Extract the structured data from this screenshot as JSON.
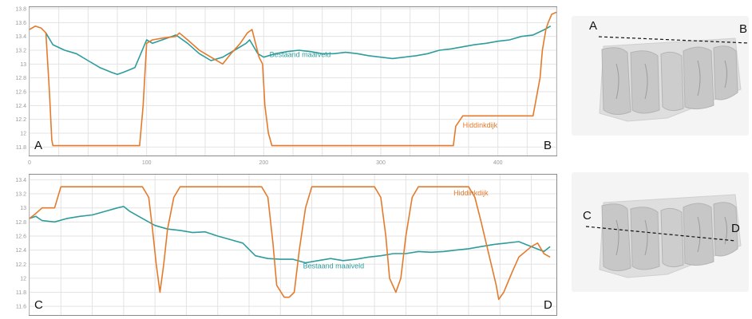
{
  "colors": {
    "ground": "#2e9c9c",
    "dike": "#e47b2c",
    "grid": "#e3e3e3"
  },
  "chart_data": [
    {
      "type": "line",
      "title": "",
      "xlabel": "",
      "ylabel": "",
      "xlim": [
        0,
        450
      ],
      "ylim": [
        11.7,
        13.8
      ],
      "xticks": [
        0,
        100,
        200,
        300,
        400
      ],
      "yticks": [
        11.8,
        12,
        12.2,
        12.4,
        12.6,
        12.8,
        13,
        13.2,
        13.4,
        13.6,
        13.8
      ],
      "ytick_labels": [
        "11.8",
        "12",
        "12.2",
        "12.4",
        "12.6",
        "12.8",
        "13",
        "13.2",
        "13.4",
        "13.6",
        "13.8"
      ],
      "corner_left": "A",
      "corner_right": "B",
      "grid": true,
      "series": [
        {
          "name": "Bestaand maaiveld",
          "color": "#2e9c9c",
          "label_pos": [
            205,
            13.1
          ],
          "x": [
            14,
            20,
            30,
            40,
            50,
            60,
            70,
            75,
            80,
            90,
            100,
            105,
            115,
            125,
            135,
            145,
            155,
            165,
            175,
            185,
            188,
            195,
            200,
            210,
            220,
            230,
            240,
            250,
            260,
            270,
            280,
            290,
            300,
            310,
            320,
            330,
            340,
            350,
            360,
            370,
            380,
            390,
            400,
            410,
            420,
            430,
            440,
            445
          ],
          "y": [
            13.45,
            13.28,
            13.2,
            13.15,
            13.05,
            12.95,
            12.88,
            12.85,
            12.88,
            12.95,
            13.35,
            13.3,
            13.36,
            13.42,
            13.3,
            13.15,
            13.05,
            13.1,
            13.2,
            13.3,
            13.35,
            13.15,
            13.1,
            13.15,
            13.18,
            13.2,
            13.18,
            13.15,
            13.15,
            13.17,
            13.15,
            13.12,
            13.1,
            13.08,
            13.1,
            13.12,
            13.15,
            13.2,
            13.22,
            13.25,
            13.28,
            13.3,
            13.33,
            13.35,
            13.4,
            13.42,
            13.5,
            13.55
          ]
        },
        {
          "name": "Hiddinkdijk",
          "color": "#e47b2c",
          "label_pos": [
            370,
            12.08
          ],
          "x": [
            0,
            5,
            10,
            14,
            17,
            19,
            20,
            30,
            50,
            80,
            94,
            97,
            100,
            105,
            115,
            125,
            128,
            135,
            145,
            155,
            165,
            172,
            180,
            186,
            190,
            193,
            196,
            199,
            201,
            204,
            207,
            220,
            260,
            300,
            340,
            362,
            364,
            370,
            380,
            400,
            430,
            436,
            438,
            441,
            443,
            446,
            450
          ],
          "y": [
            13.5,
            13.55,
            13.52,
            13.45,
            12.6,
            11.9,
            11.82,
            11.82,
            11.82,
            11.82,
            11.82,
            12.4,
            13.3,
            13.35,
            13.38,
            13.4,
            13.45,
            13.35,
            13.2,
            13.1,
            13.0,
            13.15,
            13.3,
            13.45,
            13.5,
            13.3,
            13.1,
            13.0,
            12.4,
            12.0,
            11.82,
            11.82,
            11.82,
            11.82,
            11.82,
            11.82,
            12.1,
            12.25,
            12.25,
            12.25,
            12.25,
            12.8,
            13.2,
            13.5,
            13.6,
            13.72,
            13.75
          ]
        }
      ]
    },
    {
      "type": "line",
      "title": "",
      "xlabel": "",
      "ylabel": "",
      "xlim": [
        0,
        420
      ],
      "ylim": [
        11.5,
        13.45
      ],
      "xticks": [
        0,
        100,
        200,
        300,
        400
      ],
      "yticks": [
        11.6,
        11.8,
        12,
        12.2,
        12.4,
        12.6,
        12.8,
        13,
        13.2,
        13.4
      ],
      "ytick_labels": [
        "11.6",
        "11.8",
        "12",
        "12.2",
        "12.4",
        "12.6",
        "12.8",
        "13",
        "13.2",
        "13.4"
      ],
      "corner_left": "C",
      "corner_right": "D",
      "grid": true,
      "series": [
        {
          "name": "Bestaand maaiveld",
          "color": "#2e9c9c",
          "label_pos": [
            218,
            12.14
          ],
          "x": [
            0,
            5,
            10,
            20,
            30,
            40,
            50,
            60,
            70,
            75,
            80,
            90,
            100,
            110,
            120,
            130,
            140,
            150,
            160,
            170,
            180,
            190,
            200,
            210,
            220,
            230,
            240,
            250,
            260,
            270,
            280,
            290,
            300,
            310,
            320,
            330,
            340,
            350,
            360,
            370,
            380,
            390,
            400,
            410,
            415
          ],
          "y": [
            12.85,
            12.88,
            12.82,
            12.8,
            12.85,
            12.88,
            12.9,
            12.95,
            13.0,
            13.02,
            12.95,
            12.85,
            12.75,
            12.7,
            12.68,
            12.65,
            12.66,
            12.6,
            12.55,
            12.5,
            12.32,
            12.28,
            12.27,
            12.27,
            12.22,
            12.25,
            12.28,
            12.25,
            12.27,
            12.3,
            12.32,
            12.35,
            12.35,
            12.38,
            12.37,
            12.38,
            12.4,
            12.42,
            12.45,
            12.48,
            12.5,
            12.52,
            12.45,
            12.38,
            12.45
          ]
        },
        {
          "name": "Hiddinkdijk",
          "color": "#e47b2c",
          "label_pos": [
            338,
            13.18
          ],
          "x": [
            0,
            5,
            10,
            15,
            20,
            25,
            90,
            95,
            98,
            101,
            104,
            107,
            110,
            115,
            120,
            185,
            190,
            194,
            197,
            203,
            207,
            211,
            215,
            220,
            225,
            275,
            280,
            284,
            287,
            292,
            296,
            300,
            305,
            310,
            313,
            350,
            355,
            360,
            368,
            372,
            374,
            378,
            385,
            390,
            400,
            405,
            410,
            413,
            415
          ],
          "y": [
            12.85,
            12.92,
            13.0,
            13.0,
            13.0,
            13.3,
            13.3,
            13.15,
            12.7,
            12.2,
            11.8,
            12.2,
            12.7,
            13.15,
            13.3,
            13.3,
            13.15,
            12.5,
            11.9,
            11.73,
            11.73,
            11.8,
            12.4,
            13.0,
            13.3,
            13.3,
            13.15,
            12.6,
            12.0,
            11.8,
            12.0,
            12.6,
            13.15,
            13.3,
            13.3,
            13.3,
            13.15,
            12.8,
            12.2,
            11.9,
            11.7,
            11.8,
            12.1,
            12.3,
            12.45,
            12.5,
            12.35,
            12.32,
            12.3
          ]
        }
      ]
    }
  ],
  "maps": [
    {
      "start_label": "A",
      "end_label": "B"
    },
    {
      "start_label": "C",
      "end_label": "D"
    }
  ]
}
